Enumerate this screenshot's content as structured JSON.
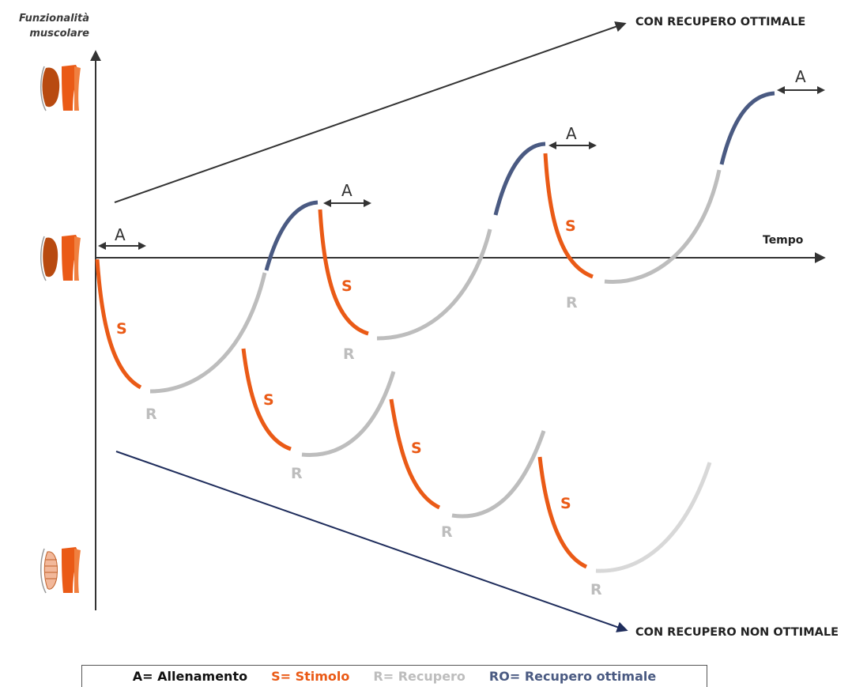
{
  "y_axis_label": {
    "line1": "Funzionalità",
    "line2": "muscolare"
  },
  "x_axis_label": "Tempo",
  "trend_up_label": "CON RECUPERO OTTIMALE",
  "trend_down_label": "CON RECUPERO NON OTTIMALE",
  "marker_a": "A",
  "marker_s": "S",
  "marker_r": "R",
  "legend": {
    "a": "A= Allenamento",
    "s": "S= Stimolo",
    "r": "R= Recupero",
    "ro": "RO= Recupero ottimale"
  },
  "colors": {
    "stimolo": "#ea5a16",
    "recupero": "#bdbdbd",
    "recupero_ottimale": "#4a5a82",
    "axis": "#333333",
    "trend_down": "#1f2d5c"
  },
  "icons": [
    "muscle-high-icon",
    "muscle-mid-icon",
    "muscle-low-icon"
  ]
}
